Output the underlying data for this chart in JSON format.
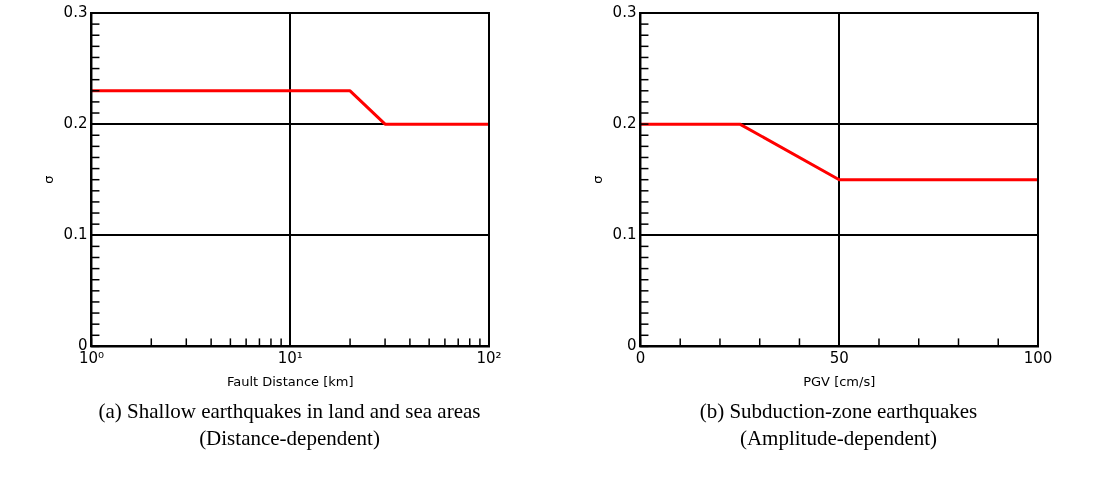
{
  "chart_data": [
    {
      "type": "line",
      "title": "(a) Shallow earthquakes in land and sea areas\n(Distance-dependent)",
      "xlabel": "Fault Distance [km]",
      "ylabel": "σ",
      "log": "x",
      "grid": true,
      "marker": "none",
      "line_style": "solid",
      "series": [
        {
          "color": "#ff0000",
          "x": [
            1,
            20,
            30,
            100
          ],
          "values": [
            0.23,
            0.23,
            0.2,
            0.2
          ]
        }
      ],
      "xlim": [
        1,
        100
      ],
      "ylim": [
        0,
        0.3
      ],
      "xticks": [
        {
          "value": 1,
          "label": "10⁰"
        },
        {
          "value": 2,
          "label": null
        },
        {
          "value": 3,
          "label": null
        },
        {
          "value": 4,
          "label": null
        },
        {
          "value": 5,
          "label": null
        },
        {
          "value": 6,
          "label": null
        },
        {
          "value": 7,
          "label": null
        },
        {
          "value": 8,
          "label": null
        },
        {
          "value": 9,
          "label": null
        },
        {
          "value": 10,
          "label": "10¹"
        },
        {
          "value": 20,
          "label": null
        },
        {
          "value": 30,
          "label": null
        },
        {
          "value": 40,
          "label": null
        },
        {
          "value": 50,
          "label": null
        },
        {
          "value": 60,
          "label": null
        },
        {
          "value": 70,
          "label": null
        },
        {
          "value": 80,
          "label": null
        },
        {
          "value": 90,
          "label": null
        },
        {
          "value": 100,
          "label": "10²"
        }
      ],
      "yticks": [
        0,
        {
          "value": 0.01,
          "label": null
        },
        {
          "value": 0.02,
          "label": null
        },
        {
          "value": 0.03,
          "label": null
        },
        {
          "value": 0.04,
          "label": null
        },
        {
          "value": 0.05,
          "label": null
        },
        {
          "value": 0.06,
          "label": null
        },
        {
          "value": 0.07,
          "label": null
        },
        {
          "value": 0.08,
          "label": null
        },
        {
          "value": 0.09,
          "label": null
        },
        0.1,
        {
          "value": 0.11,
          "label": null
        },
        {
          "value": 0.12,
          "label": null
        },
        {
          "value": 0.13,
          "label": null
        },
        {
          "value": 0.14,
          "label": null
        },
        {
          "value": 0.15,
          "label": null
        },
        {
          "value": 0.16,
          "label": null
        },
        {
          "value": 0.17,
          "label": null
        },
        {
          "value": 0.18,
          "label": null
        },
        {
          "value": 0.19,
          "label": null
        },
        0.2,
        {
          "value": 0.21,
          "label": null
        },
        {
          "value": 0.22,
          "label": null
        },
        {
          "value": 0.23,
          "label": null
        },
        {
          "value": 0.24,
          "label": null
        },
        {
          "value": 0.25,
          "label": null
        },
        {
          "value": 0.26,
          "label": null
        },
        {
          "value": 0.27,
          "label": null
        },
        {
          "value": 0.28,
          "label": null
        },
        {
          "value": 0.29,
          "label": null
        },
        0.3
      ]
    },
    {
      "type": "line",
      "title": "(b) Subduction-zone earthquakes\n(Amplitude-dependent)",
      "xlabel": "PGV [cm/s]",
      "ylabel": "σ",
      "grid": true,
      "marker": "none",
      "line_style": "solid",
      "series": [
        {
          "color": "#ff0000",
          "x": [
            0,
            25,
            50,
            100
          ],
          "values": [
            0.2,
            0.2,
            0.15,
            0.15
          ]
        }
      ],
      "xlim": [
        0,
        100
      ],
      "ylim": [
        0,
        0.3
      ],
      "xticks": [
        0,
        {
          "value": 10,
          "label": null
        },
        {
          "value": 20,
          "label": null
        },
        {
          "value": 30,
          "label": null
        },
        {
          "value": 40,
          "label": null
        },
        50,
        {
          "value": 60,
          "label": null
        },
        {
          "value": 70,
          "label": null
        },
        {
          "value": 80,
          "label": null
        },
        {
          "value": 90,
          "label": null
        },
        100
      ],
      "yticks": [
        0,
        {
          "value": 0.01,
          "label": null
        },
        {
          "value": 0.02,
          "label": null
        },
        {
          "value": 0.03,
          "label": null
        },
        {
          "value": 0.04,
          "label": null
        },
        {
          "value": 0.05,
          "label": null
        },
        {
          "value": 0.06,
          "label": null
        },
        {
          "value": 0.07,
          "label": null
        },
        {
          "value": 0.08,
          "label": null
        },
        {
          "value": 0.09,
          "label": null
        },
        0.1,
        {
          "value": 0.11,
          "label": null
        },
        {
          "value": 0.12,
          "label": null
        },
        {
          "value": 0.13,
          "label": null
        },
        {
          "value": 0.14,
          "label": null
        },
        {
          "value": 0.15,
          "label": null
        },
        {
          "value": 0.16,
          "label": null
        },
        {
          "value": 0.17,
          "label": null
        },
        {
          "value": 0.18,
          "label": null
        },
        {
          "value": 0.19,
          "label": null
        },
        0.2,
        {
          "value": 0.21,
          "label": null
        },
        {
          "value": 0.22,
          "label": null
        },
        {
          "value": 0.23,
          "label": null
        },
        {
          "value": 0.24,
          "label": null
        },
        {
          "value": 0.25,
          "label": null
        },
        {
          "value": 0.26,
          "label": null
        },
        {
          "value": 0.27,
          "label": null
        },
        {
          "value": 0.28,
          "label": null
        },
        {
          "value": 0.29,
          "label": null
        },
        0.3
      ]
    }
  ]
}
